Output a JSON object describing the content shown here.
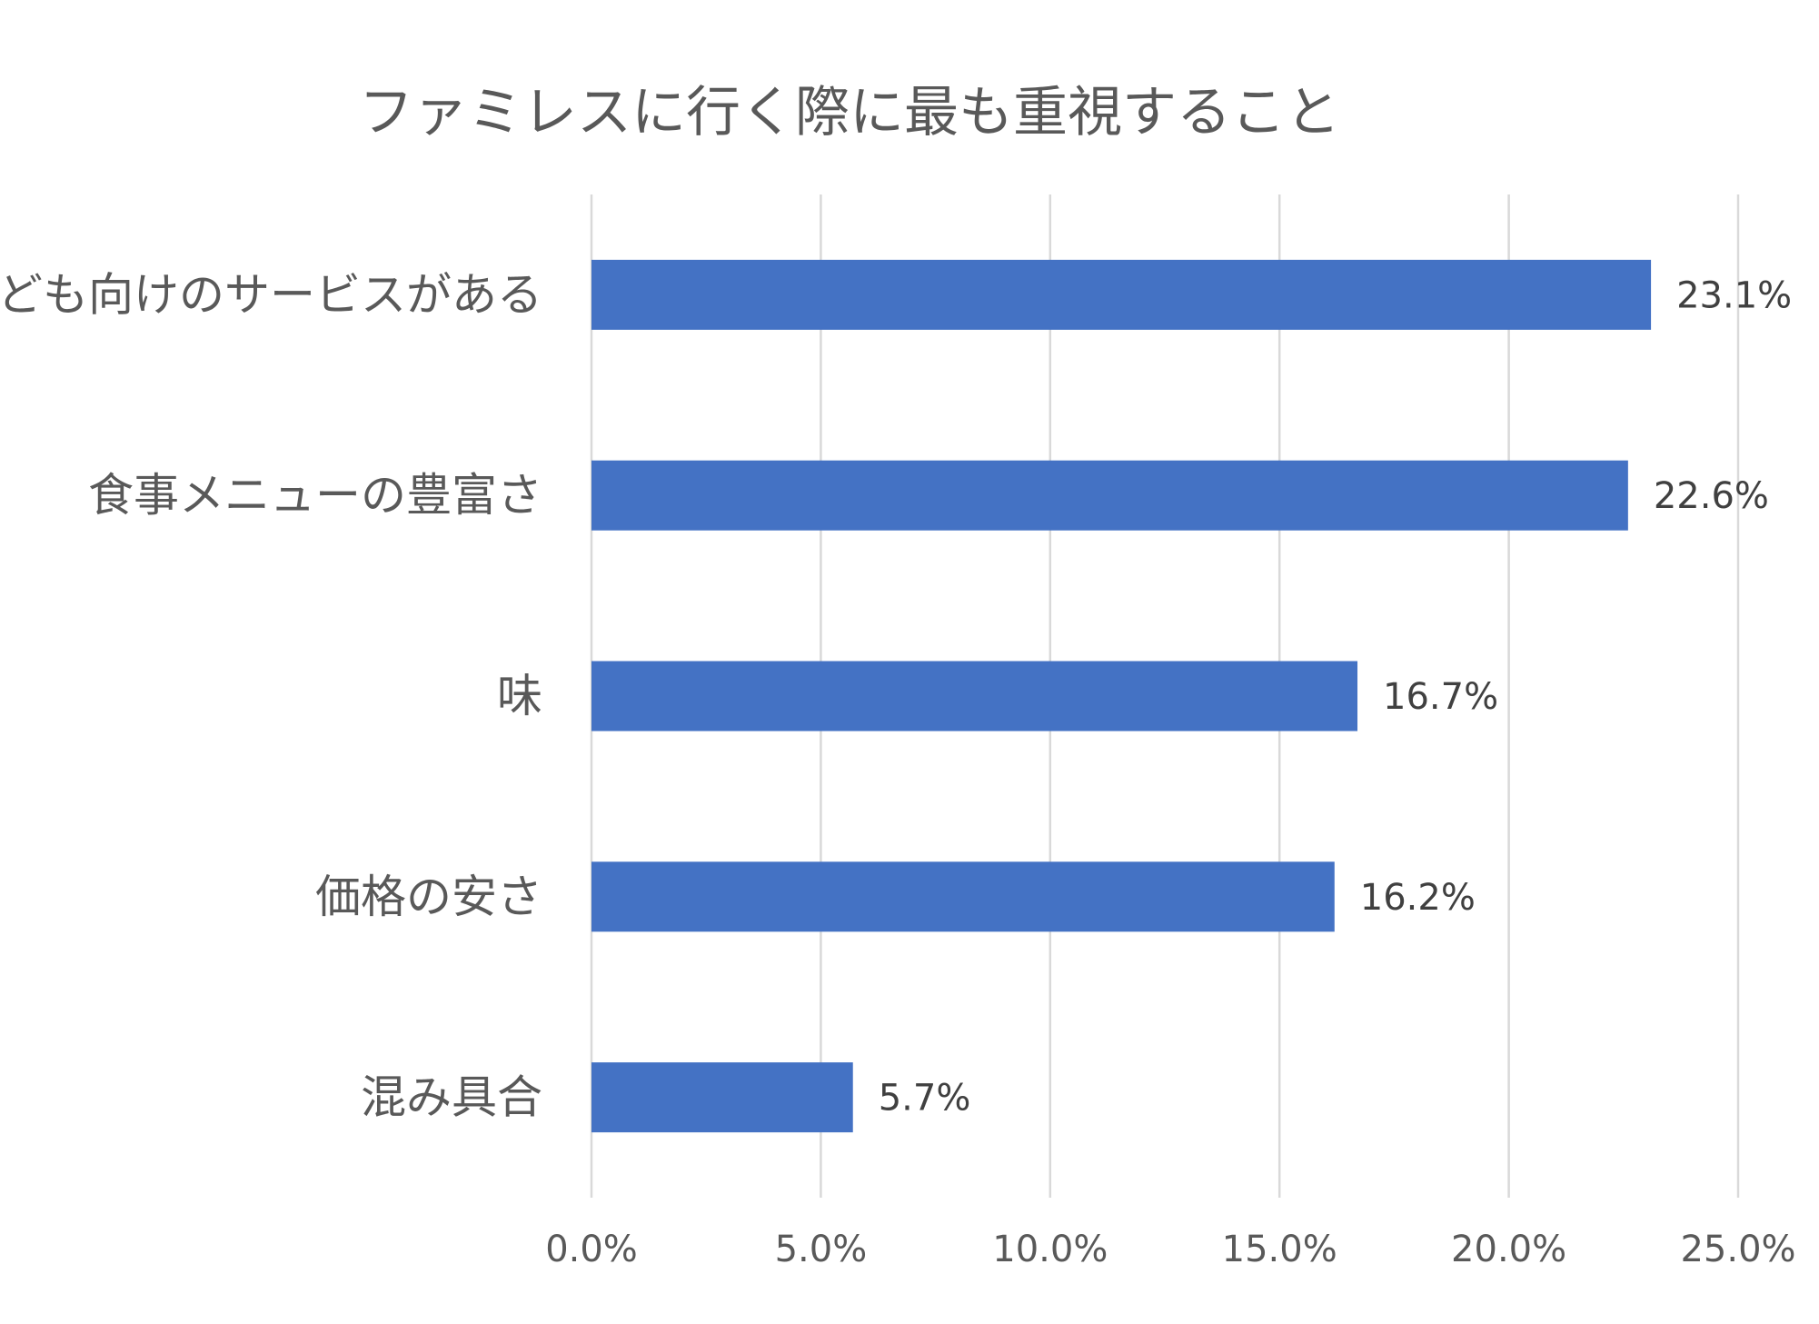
{
  "chart_data": {
    "type": "bar",
    "orientation": "horizontal",
    "title": "ファミレスに行く際に最も重視すること",
    "categories": [
      "子ども向けのサービスがある",
      "食事メニューの豊富さ",
      "味",
      "価格の安さ",
      "混み具合"
    ],
    "values": [
      23.1,
      22.6,
      16.7,
      16.2,
      5.7
    ],
    "value_labels": [
      "23.1%",
      "22.6%",
      "16.7%",
      "16.2%",
      "5.7%"
    ],
    "xlim": [
      0,
      25
    ],
    "x_ticks": [
      0,
      5,
      10,
      15,
      20,
      25
    ],
    "x_tick_labels": [
      "0.0%",
      "5.0%",
      "10.0%",
      "15.0%",
      "20.0%",
      "25.0%"
    ],
    "xlabel": "",
    "ylabel": "",
    "grid": true,
    "legend": "none",
    "bar_color": "#4472C4",
    "grid_color": "#D9D9D9"
  }
}
